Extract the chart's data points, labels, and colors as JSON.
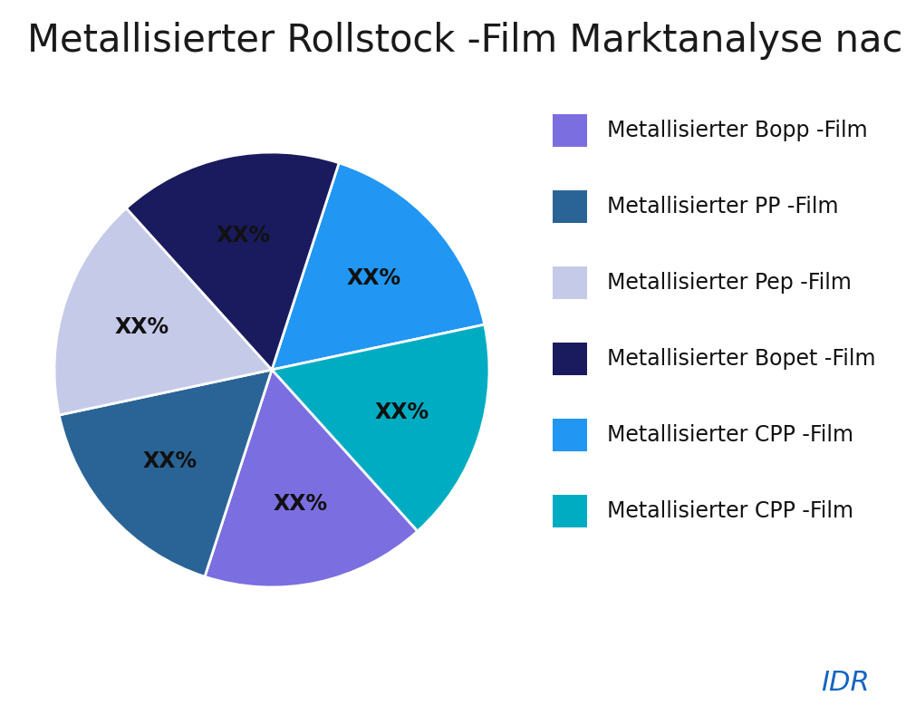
{
  "title": "Metallisierter Rollstock -Film Marktanalyse nach Typ",
  "slices": [
    {
      "label": "Metallisierter Bopp -Film",
      "value": 16.67,
      "color": "#7B6EE0"
    },
    {
      "label": "Metallisierter PP -Film",
      "value": 16.67,
      "color": "#2A6496"
    },
    {
      "label": "Metallisierter Pep -Film",
      "value": 16.67,
      "color": "#C5CAE9"
    },
    {
      "label": "Metallisierter Bopet -Film",
      "value": 16.67,
      "color": "#1A1A5E"
    },
    {
      "label": "Metallisierter CPP -Film",
      "value": 16.67,
      "color": "#2196F3"
    },
    {
      "label": "Metallisierter CPP -Film",
      "value": 16.65,
      "color": "#00ACC1"
    }
  ],
  "pie_order": [
    4,
    5,
    0,
    1,
    2,
    3
  ],
  "label_text": "XX%",
  "label_fontsize": 17,
  "label_color": "#111111",
  "title_fontsize": 30,
  "title_color": "#1a1a1a",
  "legend_fontsize": 17,
  "watermark_text": "IDR",
  "watermark_color": "#1565C0",
  "watermark_fontsize": 22,
  "background_color": "#ffffff",
  "startangle": 72
}
